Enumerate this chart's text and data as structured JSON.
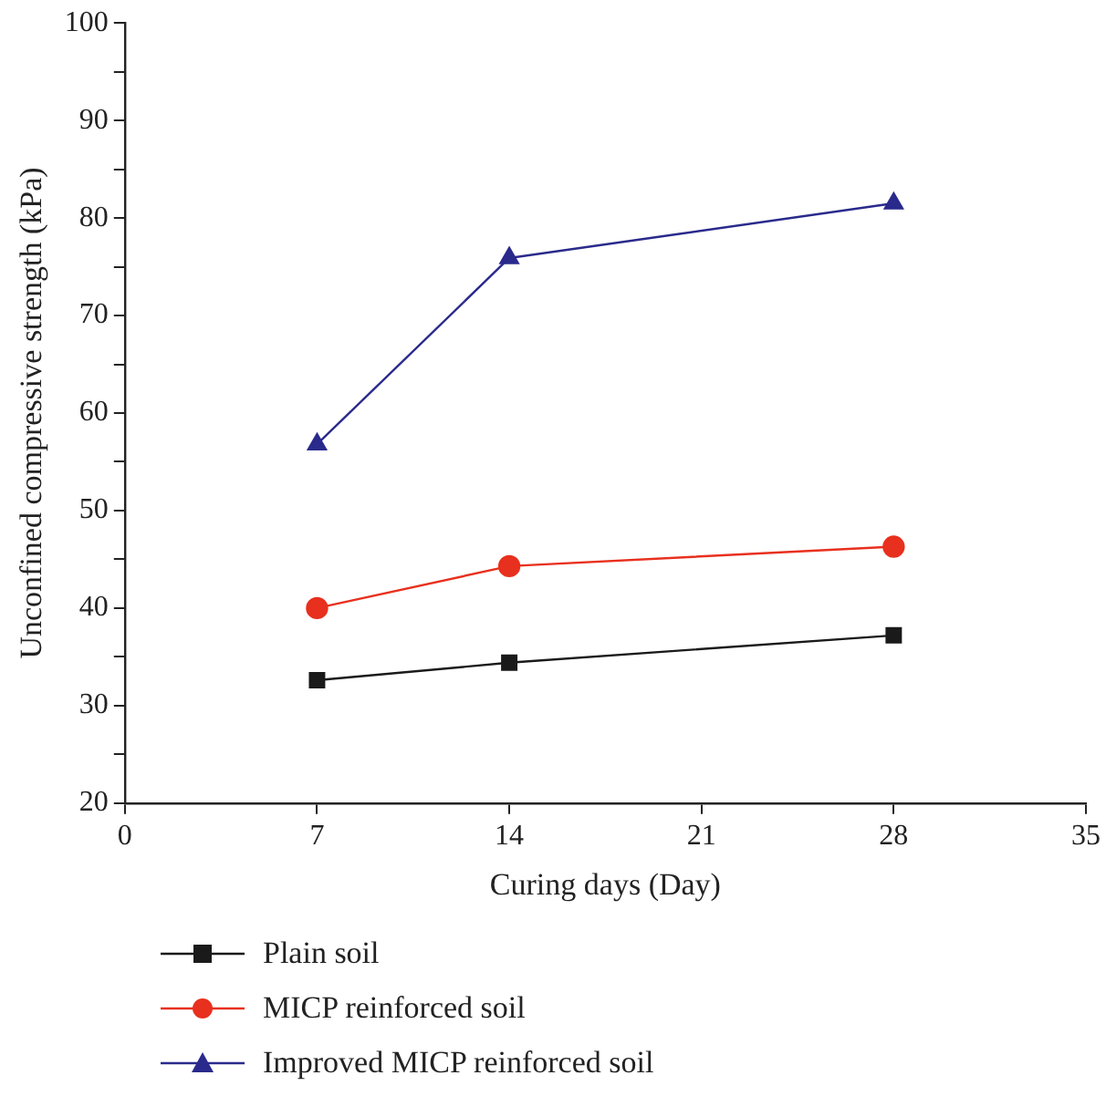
{
  "chart_data": {
    "type": "line",
    "xlabel": "Curing days (Day)",
    "ylabel": "Unconfined compressive strength (kPa)",
    "x": [
      7,
      14,
      28
    ],
    "series": [
      {
        "name": "Plain soil",
        "color": "#1a1a1a",
        "marker": "square",
        "values": [
          32.6,
          34.4,
          37.2
        ]
      },
      {
        "name": "MICP reinforced soil",
        "color": "#e8301e",
        "marker": "circle",
        "values": [
          40,
          44.3,
          46.3
        ]
      },
      {
        "name": "Improved MICP reinforced soil",
        "color": "#2a2a8c",
        "marker": "triangle",
        "values": [
          56.8,
          75.9,
          81.5
        ]
      }
    ],
    "xlim": [
      0,
      35
    ],
    "xticks": [
      0,
      7,
      14,
      21,
      28,
      35
    ],
    "ylim": [
      20,
      100
    ],
    "yticks": [
      20,
      {
        "value": 25,
        "label": null
      },
      30,
      {
        "value": 35,
        "label": null
      },
      40,
      {
        "value": 45,
        "label": null
      },
      50,
      {
        "value": 55,
        "label": null
      },
      60,
      {
        "value": 65,
        "label": null
      },
      70,
      {
        "value": 75,
        "label": null
      },
      80,
      {
        "value": 85,
        "label": null
      },
      90,
      {
        "value": 95,
        "label": null
      },
      100
    ],
    "grid": false,
    "legend": "bottom",
    "line_style": "solid"
  }
}
